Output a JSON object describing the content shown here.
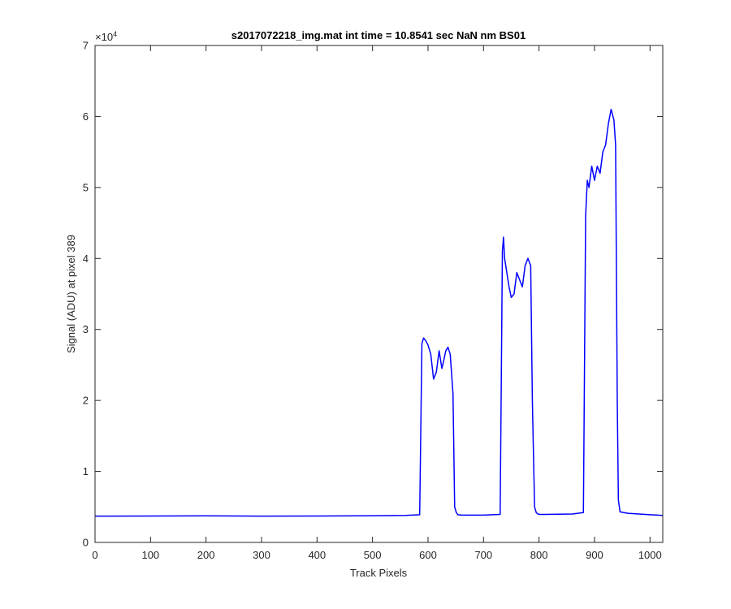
{
  "chart_data": {
    "type": "line",
    "title": "s2017072218_img.mat int time = 10.8541 sec  NaN nm BS01",
    "xlabel": "Track Pixels",
    "ylabel": "Signal (ADU) at pixel 389",
    "xlim": [
      0,
      1023
    ],
    "ylim": [
      0,
      70000
    ],
    "xticks": [
      0,
      100,
      200,
      300,
      400,
      500,
      600,
      700,
      800,
      900,
      1000
    ],
    "yticks": [
      0,
      1,
      2,
      3,
      4,
      5,
      6,
      7
    ],
    "y_exponent_label": "×10",
    "y_exponent_power": "4",
    "grid": false,
    "line_color": "#0000ff",
    "series": [
      {
        "x": [
          0,
          100,
          200,
          300,
          400,
          500,
          560,
          585,
          589,
          592,
          596,
          600,
          605,
          610,
          615,
          620,
          625,
          628,
          632,
          636,
          640,
          645,
          648,
          651,
          654,
          660,
          700,
          730,
          734,
          736,
          738,
          742,
          746,
          750,
          755,
          760,
          765,
          770,
          775,
          780,
          785,
          788,
          792,
          795,
          798,
          801,
          810,
          860,
          880,
          884,
          887,
          890,
          895,
          900,
          905,
          910,
          915,
          920,
          925,
          930,
          935,
          938,
          941,
          943,
          946,
          960,
          1000,
          1023
        ],
        "y": [
          3700,
          3720,
          3750,
          3700,
          3720,
          3760,
          3800,
          3900,
          28000,
          28800,
          28400,
          27800,
          26500,
          23000,
          24000,
          27000,
          24500,
          25500,
          27000,
          27500,
          26500,
          21000,
          5000,
          4200,
          3900,
          3850,
          3850,
          3950,
          41000,
          43000,
          40000,
          38000,
          36000,
          34500,
          35000,
          38000,
          37000,
          36000,
          39000,
          40000,
          39000,
          20000,
          5000,
          4200,
          4000,
          3950,
          3950,
          4000,
          4200,
          46000,
          51000,
          50000,
          53000,
          51000,
          53000,
          52000,
          55000,
          56000,
          59000,
          61000,
          59500,
          56000,
          20000,
          6000,
          4300,
          4100,
          3900,
          3800
        ]
      }
    ]
  }
}
